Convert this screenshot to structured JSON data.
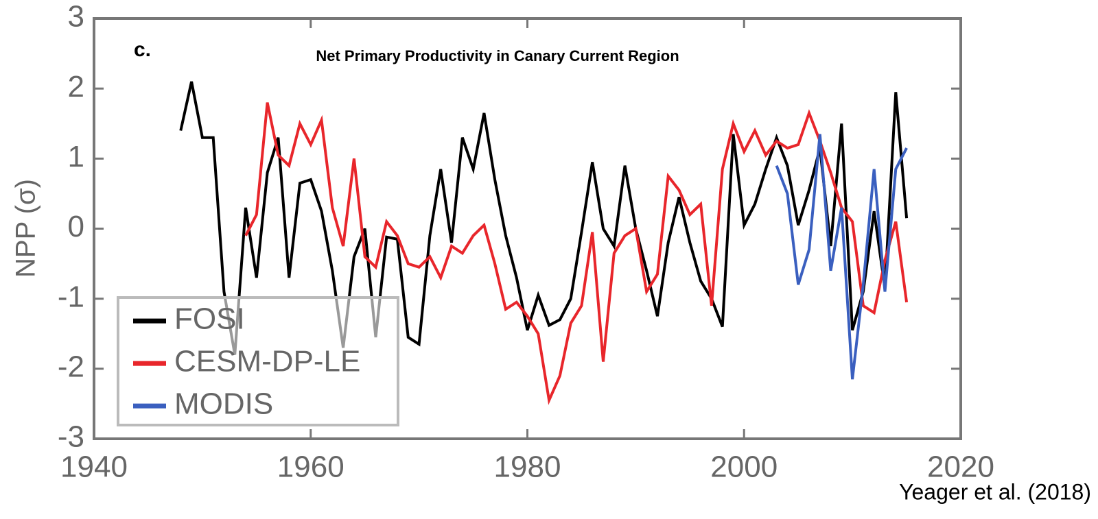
{
  "chart_data": {
    "type": "line",
    "panel_label": "c.",
    "title": "Net Primary Productivity in Canary Current Region",
    "y_label": "NPP (σ)",
    "source": "Yeager et al. (2018)",
    "x": [
      1948,
      1949,
      1950,
      1951,
      1952,
      1953,
      1954,
      1955,
      1956,
      1957,
      1958,
      1959,
      1960,
      1961,
      1962,
      1963,
      1964,
      1965,
      1966,
      1967,
      1968,
      1969,
      1970,
      1971,
      1972,
      1973,
      1974,
      1975,
      1976,
      1977,
      1978,
      1979,
      1980,
      1981,
      1982,
      1983,
      1984,
      1985,
      1986,
      1987,
      1988,
      1989,
      1990,
      1991,
      1992,
      1993,
      1994,
      1995,
      1996,
      1997,
      1998,
      1999,
      2000,
      2001,
      2002,
      2003,
      2004,
      2005,
      2006,
      2007,
      2008,
      2009,
      2010,
      2011,
      2012,
      2013,
      2014,
      2015
    ],
    "series": [
      {
        "name": "FOSI",
        "color": "#000000",
        "values": [
          1.4,
          2.1,
          1.3,
          1.3,
          -0.9,
          -1.8,
          0.3,
          -0.7,
          0.8,
          1.3,
          -0.7,
          0.65,
          0.7,
          0.25,
          -0.6,
          -1.7,
          -0.4,
          0.0,
          -1.55,
          -0.12,
          -0.15,
          -1.55,
          -1.65,
          -0.1,
          0.85,
          -0.2,
          1.3,
          0.85,
          1.65,
          0.7,
          -0.1,
          -0.7,
          -1.45,
          -0.95,
          -1.38,
          -1.3,
          -1.0,
          -0.05,
          0.95,
          0.0,
          -0.25,
          0.9,
          0.0,
          -0.6,
          -1.25,
          -0.2,
          0.45,
          -0.2,
          -0.75,
          -1.0,
          -1.4,
          1.35,
          0.05,
          0.35,
          0.85,
          1.3,
          0.9,
          0.05,
          0.55,
          1.15,
          -0.25,
          1.5,
          -1.45,
          -0.9,
          0.25,
          -0.85,
          1.95,
          0.15
        ]
      },
      {
        "name": "CESM-DP-LE",
        "color": "#e8262b",
        "values": [
          null,
          null,
          null,
          null,
          null,
          null,
          -0.1,
          0.2,
          1.8,
          1.05,
          0.9,
          1.5,
          1.2,
          1.55,
          0.3,
          -0.25,
          1.0,
          -0.4,
          -0.55,
          0.1,
          -0.1,
          -0.5,
          -0.55,
          -0.4,
          -0.7,
          -0.25,
          -0.35,
          -0.1,
          0.05,
          -0.5,
          -1.15,
          -1.05,
          -1.25,
          -1.5,
          -2.45,
          -2.1,
          -1.35,
          -1.1,
          -0.05,
          -1.9,
          -0.35,
          -0.1,
          0.0,
          -0.9,
          -0.65,
          0.75,
          0.55,
          0.2,
          0.35,
          -1.1,
          0.85,
          1.5,
          1.1,
          1.4,
          1.05,
          1.25,
          1.15,
          1.2,
          1.65,
          1.25,
          0.8,
          0.3,
          0.1,
          -1.1,
          -1.2,
          -0.45,
          0.1,
          -1.05
        ]
      },
      {
        "name": "MODIS",
        "color": "#3a5fbf",
        "values": [
          null,
          null,
          null,
          null,
          null,
          null,
          null,
          null,
          null,
          null,
          null,
          null,
          null,
          null,
          null,
          null,
          null,
          null,
          null,
          null,
          null,
          null,
          null,
          null,
          null,
          null,
          null,
          null,
          null,
          null,
          null,
          null,
          null,
          null,
          null,
          null,
          null,
          null,
          null,
          null,
          null,
          null,
          null,
          null,
          null,
          null,
          null,
          null,
          null,
          null,
          null,
          null,
          null,
          null,
          null,
          0.9,
          0.5,
          -0.8,
          -0.3,
          1.35,
          -0.6,
          0.3,
          -2.15,
          -0.8,
          0.85,
          -0.9,
          0.85,
          1.15
        ]
      }
    ],
    "xlim": [
      1940,
      2020
    ],
    "xticks": [
      1940,
      1960,
      1980,
      2000,
      2020
    ],
    "ylim": [
      -3,
      3
    ],
    "yticks": [
      -3,
      -2,
      -1,
      0,
      1,
      2,
      3
    ],
    "grid": false,
    "legend": "lower left"
  }
}
